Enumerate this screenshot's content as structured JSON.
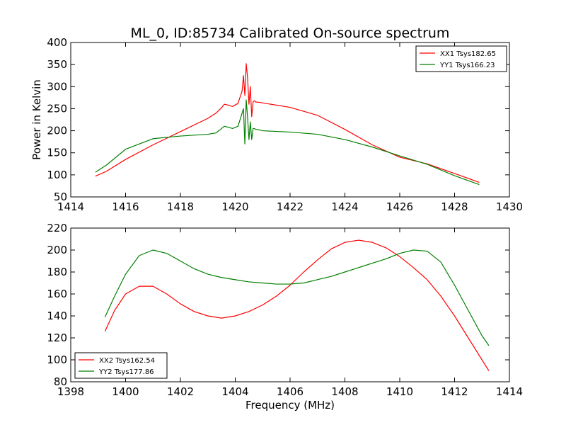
{
  "figure": {
    "title": "ML_0, ID:85734 Calibrated On-source spectrum",
    "xlabel": "Frequency (MHz)"
  },
  "chart_data": [
    {
      "type": "line",
      "title": "ML_0, ID:85734 Calibrated On-source spectrum",
      "xlabel": "",
      "ylabel": "Power in Kelvin",
      "xlim": [
        1414,
        1430
      ],
      "ylim": [
        50,
        400
      ],
      "xticks": [
        1414,
        1416,
        1418,
        1420,
        1422,
        1424,
        1426,
        1428,
        1430
      ],
      "yticks": [
        50,
        100,
        150,
        200,
        250,
        300,
        350,
        400
      ],
      "grid": false,
      "legend": "top-right",
      "series": [
        {
          "name": "XX1 Tsys182.65",
          "color": "#ff0000",
          "x": [
            1414.9,
            1415.3,
            1416.0,
            1417.0,
            1418.0,
            1419.0,
            1419.3,
            1419.5,
            1419.6,
            1419.75,
            1419.9,
            1420.1,
            1420.25,
            1420.3,
            1420.35,
            1420.4,
            1420.45,
            1420.5,
            1420.55,
            1420.6,
            1420.65,
            1420.7,
            1420.75,
            1420.8,
            1421.0,
            1422.0,
            1423.0,
            1424.0,
            1425.0,
            1426.0,
            1427.0,
            1428.0,
            1428.9
          ],
          "y": [
            97,
            108,
            135,
            168,
            198,
            228,
            240,
            252,
            260,
            258,
            255,
            262,
            290,
            325,
            280,
            352,
            320,
            260,
            300,
            232,
            265,
            268,
            265,
            265,
            263,
            253,
            235,
            203,
            168,
            140,
            125,
            103,
            83
          ]
        },
        {
          "name": "YY1 Tsys166.23",
          "color": "#008000",
          "x": [
            1414.9,
            1415.3,
            1416.0,
            1417.0,
            1418.0,
            1419.0,
            1419.3,
            1419.5,
            1419.6,
            1419.75,
            1419.9,
            1420.1,
            1420.25,
            1420.3,
            1420.35,
            1420.4,
            1420.45,
            1420.5,
            1420.55,
            1420.6,
            1420.65,
            1420.7,
            1420.75,
            1420.8,
            1421.0,
            1422.0,
            1423.0,
            1424.0,
            1425.0,
            1426.0,
            1427.0,
            1428.0,
            1428.9
          ],
          "y": [
            106,
            122,
            158,
            182,
            188,
            192,
            195,
            205,
            210,
            208,
            205,
            210,
            240,
            250,
            170,
            270,
            230,
            180,
            220,
            180,
            205,
            205,
            203,
            203,
            200,
            197,
            192,
            180,
            163,
            143,
            124,
            98,
            78
          ]
        }
      ]
    },
    {
      "type": "line",
      "title": "",
      "xlabel": "Frequency (MHz)",
      "ylabel": "",
      "xlim": [
        1398,
        1414
      ],
      "ylim": [
        80,
        220
      ],
      "xticks": [
        1398,
        1400,
        1402,
        1404,
        1406,
        1408,
        1410,
        1412,
        1414
      ],
      "yticks": [
        80,
        100,
        120,
        140,
        160,
        180,
        200,
        220
      ],
      "grid": false,
      "legend": "bottom-left",
      "series": [
        {
          "name": "XX2 Tsys162.54",
          "color": "#ff0000",
          "x": [
            1399.25,
            1399.6,
            1400.0,
            1400.5,
            1401.0,
            1401.5,
            1402.0,
            1402.5,
            1403.0,
            1403.5,
            1404.0,
            1404.5,
            1405.0,
            1405.5,
            1406.0,
            1406.5,
            1407.0,
            1407.5,
            1408.0,
            1408.5,
            1409.0,
            1409.5,
            1410.0,
            1410.5,
            1411.0,
            1411.5,
            1412.0,
            1412.5,
            1413.0,
            1413.25
          ],
          "y": [
            126,
            145,
            160,
            167,
            167,
            160,
            151,
            144,
            140,
            138,
            140,
            144,
            150,
            158,
            168,
            180,
            191,
            201,
            207,
            209,
            207,
            202,
            194,
            184,
            173,
            158,
            140,
            120,
            100,
            90
          ]
        },
        {
          "name": "YY2 Tsys177.86",
          "color": "#008000",
          "x": [
            1399.25,
            1399.6,
            1400.0,
            1400.5,
            1401.0,
            1401.5,
            1402.0,
            1402.5,
            1403.0,
            1403.5,
            1404.0,
            1404.5,
            1405.0,
            1405.5,
            1406.0,
            1406.5,
            1407.0,
            1407.5,
            1408.0,
            1408.5,
            1409.0,
            1409.5,
            1410.0,
            1410.5,
            1411.0,
            1411.5,
            1412.0,
            1412.5,
            1413.0,
            1413.25
          ],
          "y": [
            139,
            158,
            178,
            195,
            200,
            197,
            190,
            183,
            178,
            175,
            173,
            171,
            170,
            169,
            169,
            170,
            173,
            176,
            180,
            184,
            188,
            192,
            197,
            200,
            199,
            189,
            168,
            145,
            122,
            113
          ]
        }
      ]
    }
  ]
}
